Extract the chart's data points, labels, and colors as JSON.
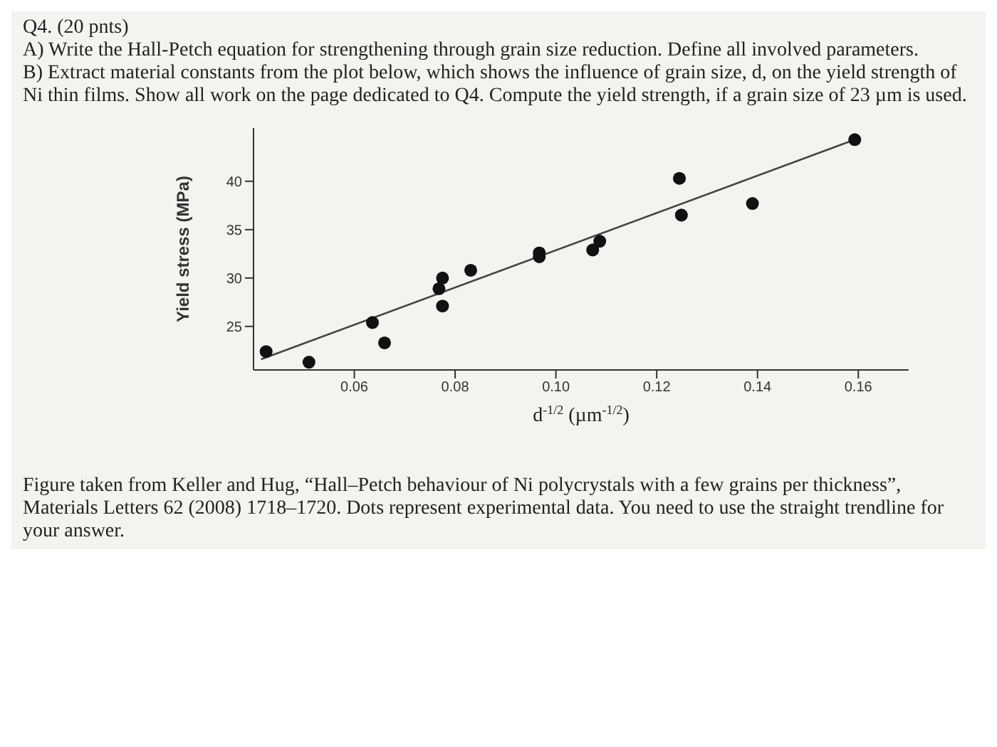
{
  "chart_data": {
    "type": "scatter",
    "annotations": [
      "Q4. (20 pnts)",
      "A) Write the Hall-Petch equation for strengthening through grain size reduction. Define all involved parameters.",
      "B) Extract material constants from the plot below, which shows the influence of grain size, d, on the yield strength of Ni thin films. Show all work on the page dedicated to Q4. Compute the yield strength, if a grain size of 23 µm is used.",
      "Figure taken from Keller and Hug, “Hall–Petch behaviour of Ni polycrystals with a few grains per thickness”, Materials Letters 62 (2008) 1718–1720. Dots represent experimental data. You need to use the straight trendline for your answer."
    ],
    "xlabel": "d$^{-1/2}$ (µm$^{-1/2}$)",
    "ylabel": "Yield stress (MPa)",
    "series": [
      {
        "color": "#111111",
        "marker": "circle",
        "x": [
          0.0425,
          0.051,
          0.0636,
          0.066,
          0.0768,
          0.0775,
          0.0775,
          0.0831,
          0.0967,
          0.0967,
          0.1073,
          0.1087,
          0.1245,
          0.1249,
          0.139,
          0.1593
        ],
        "values": [
          22.4,
          21.3,
          25.4,
          23.3,
          28.9,
          30.0,
          27.1,
          30.8,
          32.6,
          32.2,
          32.9,
          33.8,
          40.3,
          36.5,
          37.7,
          44.3
        ]
      },
      {
        "type": "line",
        "color": "#444444",
        "marker": "none",
        "x": [
          0.0415,
          0.1593
        ],
        "values": [
          21.6,
          44.3
        ]
      }
    ],
    "xlim": [
      0.04,
      0.17
    ],
    "xticks": [
      0.06,
      0.08,
      {
        "value": 0.1,
        "label": "0.10"
      },
      0.12,
      0.14,
      0.16
    ],
    "ylim": [
      20.5,
      45.5
    ],
    "yticks": [
      25,
      30,
      35,
      40
    ],
    "grid": false,
    "legend": false
  }
}
